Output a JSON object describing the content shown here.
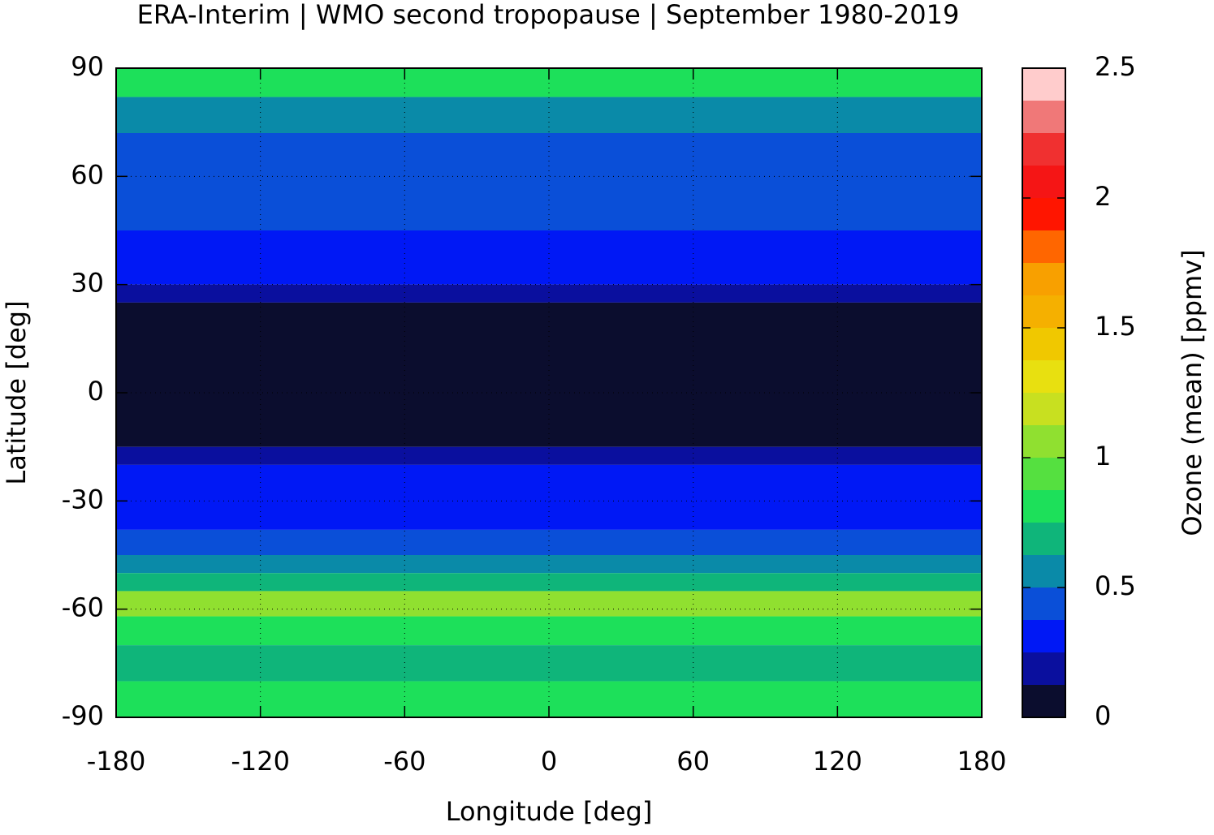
{
  "chart_data": {
    "type": "zonal-map",
    "title": "ERA-Interim | WMO second tropopause | September 1980-2019",
    "x_label": "Longitude [deg]",
    "y_label": "Latitude [deg]",
    "xlim": [
      -180,
      180
    ],
    "xticks": [
      -180,
      -120,
      -60,
      0,
      60,
      120,
      180
    ],
    "ylim": [
      -90,
      90
    ],
    "yticks": [
      -90,
      -60,
      -30,
      0,
      30,
      60,
      90
    ],
    "grid": true,
    "lat_edges": [
      90,
      82,
      72,
      45,
      30,
      25,
      -15,
      -20,
      -38,
      -45,
      -50,
      -55,
      -62,
      -70,
      -80,
      -90
    ],
    "values": [
      0.8,
      0.55,
      0.45,
      0.3,
      0.2,
      0.05,
      0.2,
      0.3,
      0.45,
      0.55,
      0.7,
      1.05,
      0.85,
      0.7,
      0.8
    ],
    "colorbar": {
      "label": "Ozone (mean) [ppmv]",
      "lim": [
        0,
        2.5
      ],
      "ticks": [
        0,
        0.5,
        1,
        1.5,
        2,
        2.5
      ],
      "levels": [
        0,
        0.125,
        0.25,
        0.375,
        0.5,
        0.625,
        0.75,
        0.875,
        1,
        1.125,
        1.25,
        1.375,
        1.5,
        1.625,
        1.75,
        1.875,
        2,
        2.125,
        2.25,
        2.375,
        2.5
      ],
      "colors": [
        "#0b0d2e",
        "#0a0f9e",
        "#0018f5",
        "#0a4fd8",
        "#0a8aa8",
        "#0fb57a",
        "#1de05a",
        "#55e040",
        "#90e030",
        "#c8e020",
        "#e8e010",
        "#f0c800",
        "#f5b000",
        "#f8a000",
        "#ff6600",
        "#ff1500",
        "#f51515",
        "#f03030",
        "#f07878",
        "#ffcccc"
      ]
    }
  }
}
